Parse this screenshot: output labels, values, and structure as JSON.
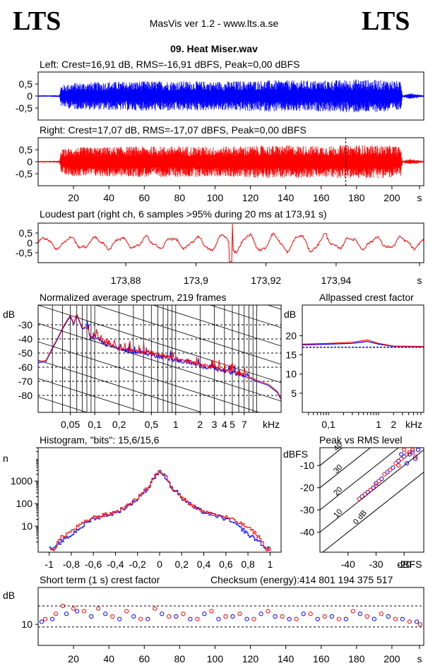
{
  "header": {
    "logo_left": "LTS",
    "logo_right": "LTS",
    "app_title": "MasVis ver 1.2 - www.lts.a.se",
    "file_title": "09. Heat Miser.wav"
  },
  "colors": {
    "left": "#0000ff",
    "right": "#ff0000",
    "axis": "#000000"
  },
  "chart_data": [
    {
      "id": "left_waveform",
      "type": "area",
      "title": "Left: Crest=16,91 dB, RMS=-16,91 dBFS, Peak=0,00 dBFS",
      "series": [
        {
          "name": "Left",
          "color": "#0000ff"
        }
      ],
      "yticks": [
        "0,5",
        "0",
        "-0,5"
      ],
      "ylim": [
        -1,
        1
      ],
      "xlim": [
        0,
        218
      ],
      "envelope": [
        [
          0,
          0.03
        ],
        [
          12,
          0.04
        ],
        [
          13,
          0.45
        ],
        [
          20,
          0.55
        ],
        [
          40,
          0.6
        ],
        [
          60,
          0.62
        ],
        [
          80,
          0.63
        ],
        [
          100,
          0.6
        ],
        [
          120,
          0.64
        ],
        [
          140,
          0.66
        ],
        [
          160,
          0.64
        ],
        [
          180,
          0.7
        ],
        [
          200,
          0.66
        ],
        [
          205,
          0.6
        ],
        [
          206,
          0.04
        ],
        [
          210,
          0.12
        ],
        [
          214,
          0.08
        ],
        [
          218,
          0.03
        ]
      ]
    },
    {
      "id": "right_waveform",
      "type": "area",
      "title": "Right: Crest=17,07 dB, RMS=-17,07 dBFS, Peak=0,00 dBFS",
      "series": [
        {
          "name": "Right",
          "color": "#ff0000"
        }
      ],
      "yticks": [
        "0,5",
        "0",
        "-0,5"
      ],
      "ylim": [
        -1,
        1
      ],
      "xlim": [
        0,
        218
      ],
      "xticks": [
        "20",
        "40",
        "60",
        "80",
        "100",
        "120",
        "140",
        "160",
        "180",
        "200",
        "s"
      ],
      "marker_x": 173.91,
      "envelope": [
        [
          0,
          0.03
        ],
        [
          12,
          0.04
        ],
        [
          13,
          0.5
        ],
        [
          20,
          0.6
        ],
        [
          40,
          0.62
        ],
        [
          60,
          0.64
        ],
        [
          80,
          0.65
        ],
        [
          100,
          0.62
        ],
        [
          120,
          0.66
        ],
        [
          140,
          0.68
        ],
        [
          160,
          0.66
        ],
        [
          180,
          0.7
        ],
        [
          200,
          0.68
        ],
        [
          205,
          0.62
        ],
        [
          206,
          0.04
        ],
        [
          210,
          0.12
        ],
        [
          214,
          0.08
        ],
        [
          218,
          0.03
        ]
      ]
    },
    {
      "id": "loudest_part",
      "type": "line",
      "title": "Loudest part (right ch, 6 samples >95% during 20 ms at 173,91 s)",
      "series": [
        {
          "name": "Right",
          "color": "#ff0000"
        }
      ],
      "yticks": [
        "0,5",
        "0",
        "-0,5"
      ],
      "ylim": [
        -1,
        1
      ],
      "xlim": [
        173.855,
        173.965
      ],
      "xticks": [
        "173,88",
        "173,9",
        "173,92",
        "173,94",
        "s"
      ],
      "xtick_values": [
        173.88,
        173.9,
        173.92,
        173.94
      ]
    },
    {
      "id": "avg_spectrum",
      "type": "line",
      "title": "Normalized average spectrum, 219 frames",
      "ylabel": "dB",
      "yticks": [
        "-30",
        "-40",
        "-50",
        "-60",
        "-70",
        "-80"
      ],
      "ylim": [
        -92,
        -16
      ],
      "xlabel": "kHz",
      "xticks": [
        "0,05",
        "0,1",
        "0,2",
        "0,5",
        "1",
        "2",
        "3",
        "4",
        "5",
        "7"
      ],
      "xscale": "log",
      "xlim": [
        0.02,
        20
      ],
      "series": [
        {
          "name": "Left",
          "color": "#0000ff"
        },
        {
          "name": "Right",
          "color": "#ff0000"
        }
      ],
      "points": [
        [
          0.02,
          -57
        ],
        [
          0.025,
          -56
        ],
        [
          0.03,
          -47
        ],
        [
          0.035,
          -40
        ],
        [
          0.04,
          -33
        ],
        [
          0.045,
          -28
        ],
        [
          0.05,
          -24
        ],
        [
          0.055,
          -30
        ],
        [
          0.06,
          -23
        ],
        [
          0.07,
          -33
        ],
        [
          0.08,
          -32
        ],
        [
          0.09,
          -40
        ],
        [
          0.1,
          -38
        ],
        [
          0.12,
          -41
        ],
        [
          0.14,
          -44
        ],
        [
          0.17,
          -45
        ],
        [
          0.2,
          -47
        ],
        [
          0.25,
          -48
        ],
        [
          0.3,
          -49
        ],
        [
          0.4,
          -50
        ],
        [
          0.5,
          -51
        ],
        [
          0.7,
          -53
        ],
        [
          1,
          -55
        ],
        [
          1.5,
          -57
        ],
        [
          2,
          -59
        ],
        [
          3,
          -61
        ],
        [
          4,
          -63
        ],
        [
          5,
          -64
        ],
        [
          7,
          -66
        ],
        [
          10,
          -70
        ],
        [
          14,
          -73
        ],
        [
          18,
          -78
        ],
        [
          20,
          -83
        ]
      ]
    },
    {
      "id": "allpassed_crest",
      "type": "line",
      "title": "Allpassed crest factor",
      "ylabel": "dB",
      "yticks": [
        "20",
        "15",
        "10",
        "5"
      ],
      "ylim": [
        0,
        28
      ],
      "xlabel": "kHz",
      "xticks": [
        "0,1",
        "1",
        "2"
      ],
      "xscale": "log",
      "xlim": [
        0.03,
        8
      ],
      "reference_db": 17.0,
      "series": [
        {
          "name": "Left",
          "color": "#0000ff",
          "points": [
            [
              0.03,
              17.6
            ],
            [
              0.1,
              17.8
            ],
            [
              0.3,
              18.0
            ],
            [
              0.6,
              18.5
            ],
            [
              1,
              17.8
            ],
            [
              2,
              17.2
            ],
            [
              8,
              17.1
            ]
          ]
        },
        {
          "name": "Right",
          "color": "#ff0000",
          "points": [
            [
              0.03,
              17.8
            ],
            [
              0.1,
              18.0
            ],
            [
              0.3,
              18.3
            ],
            [
              0.6,
              18.9
            ],
            [
              1,
              18.0
            ],
            [
              2,
              17.3
            ],
            [
              8,
              17.2
            ]
          ]
        }
      ]
    },
    {
      "id": "histogram",
      "type": "line",
      "title": "Histogram, \"bits\": 15,6/15,6",
      "ylabel": "n",
      "yticks": [
        "1000",
        "100",
        "10"
      ],
      "yscale": "log",
      "ylim": [
        0.7,
        30000
      ],
      "xticks": [
        "-1",
        "-0,8",
        "-0,6",
        "-0,4",
        "-0,2",
        "0",
        "0,2",
        "0,4",
        "0,6",
        "0,8",
        "1"
      ],
      "xlim": [
        -1.1,
        1.1
      ],
      "series": [
        {
          "name": "Left",
          "color": "#0000ff",
          "points": [
            [
              -1,
              1
            ],
            [
              -0.95,
              1
            ],
            [
              -0.9,
              2
            ],
            [
              -0.8,
              4
            ],
            [
              -0.7,
              10
            ],
            [
              -0.6,
              22
            ],
            [
              -0.5,
              30
            ],
            [
              -0.4,
              40
            ],
            [
              -0.3,
              70
            ],
            [
              -0.2,
              160
            ],
            [
              -0.1,
              500
            ],
            [
              0,
              2500
            ],
            [
              0.1,
              500
            ],
            [
              0.2,
              160
            ],
            [
              0.3,
              70
            ],
            [
              0.4,
              40
            ],
            [
              0.5,
              30
            ],
            [
              0.6,
              20
            ],
            [
              0.7,
              10
            ],
            [
              0.8,
              4
            ],
            [
              0.9,
              2
            ],
            [
              0.95,
              1
            ],
            [
              1,
              1
            ]
          ]
        },
        {
          "name": "Right",
          "color": "#ff0000",
          "points": [
            [
              -1,
              1
            ],
            [
              -0.95,
              1
            ],
            [
              -0.9,
              3
            ],
            [
              -0.8,
              6
            ],
            [
              -0.7,
              13
            ],
            [
              -0.6,
              25
            ],
            [
              -0.5,
              32
            ],
            [
              -0.4,
              42
            ],
            [
              -0.3,
              75
            ],
            [
              -0.2,
              170
            ],
            [
              -0.1,
              550
            ],
            [
              0,
              2700
            ],
            [
              0.1,
              550
            ],
            [
              0.2,
              170
            ],
            [
              0.3,
              75
            ],
            [
              0.4,
              42
            ],
            [
              0.5,
              32
            ],
            [
              0.6,
              25
            ],
            [
              0.7,
              15
            ],
            [
              0.8,
              8
            ],
            [
              0.9,
              3
            ],
            [
              0.95,
              1
            ],
            [
              1,
              1
            ]
          ]
        }
      ]
    },
    {
      "id": "peak_vs_rms",
      "type": "scatter",
      "title": "Peak vs RMS level",
      "ylabel": "dBFS",
      "xlabel": "dBFS",
      "yticks": [
        "-10",
        "-20",
        "-30",
        "-40"
      ],
      "xticks": [
        "-40",
        "-30",
        "-20"
      ],
      "xlim": [
        -50,
        -13
      ],
      "ylim": [
        -49,
        -2
      ],
      "crest_lines": [
        "0 dB",
        "10",
        "20",
        "30",
        "40"
      ],
      "series": [
        {
          "name": "Left",
          "color": "#0000ff",
          "points": [
            [
              -35,
              -24
            ],
            [
              -33,
              -22
            ],
            [
              -31,
              -20
            ],
            [
              -30,
              -18
            ],
            [
              -28,
              -16
            ],
            [
              -26,
              -13
            ],
            [
              -24,
              -11
            ],
            [
              -22,
              -8
            ],
            [
              -20,
              -6
            ],
            [
              -18,
              -5
            ],
            [
              -17,
              -4
            ],
            [
              -16,
              -7
            ],
            [
              -19,
              -9
            ],
            [
              -21,
              -5
            ],
            [
              -15,
              -3
            ]
          ]
        },
        {
          "name": "Right",
          "color": "#ff0000",
          "points": [
            [
              -36,
              -25
            ],
            [
              -34,
              -23
            ],
            [
              -32,
              -21
            ],
            [
              -30,
              -19
            ],
            [
              -29,
              -17
            ],
            [
              -27,
              -14
            ],
            [
              -25,
              -12
            ],
            [
              -23,
              -9
            ],
            [
              -21,
              -7
            ],
            [
              -19,
              -5
            ],
            [
              -18,
              -4
            ],
            [
              -17,
              -3
            ],
            [
              -16,
              -6
            ],
            [
              -20,
              -3
            ],
            [
              -22,
              -10
            ]
          ]
        }
      ]
    },
    {
      "id": "short_term_crest",
      "type": "scatter",
      "title": "Short term (1 s) crest factor",
      "ylabel": "dB",
      "yticks": [
        "10"
      ],
      "ylim": [
        2,
        24
      ],
      "xlim": [
        0,
        218
      ],
      "xticks": [
        "20",
        "40",
        "60",
        "80",
        "100",
        "120",
        "140",
        "160",
        "180",
        "200",
        "s"
      ],
      "reference_lines_db": [
        17,
        9
      ],
      "series": [
        {
          "name": "Left",
          "color": "#0000ff",
          "points": [
            [
              2,
              11
            ],
            [
              8,
              12
            ],
            [
              16,
              14
            ],
            [
              22,
              15
            ],
            [
              30,
              13
            ],
            [
              38,
              14
            ],
            [
              46,
              12
            ],
            [
              54,
              13
            ],
            [
              62,
              12
            ],
            [
              70,
              14
            ],
            [
              78,
              13
            ],
            [
              86,
              12
            ],
            [
              94,
              14
            ],
            [
              102,
              12
            ],
            [
              110,
              13
            ],
            [
              118,
              12
            ],
            [
              126,
              14
            ],
            [
              134,
              13
            ],
            [
              142,
              12
            ],
            [
              150,
              14
            ],
            [
              158,
              12
            ],
            [
              166,
              13
            ],
            [
              174,
              12
            ],
            [
              182,
              14
            ],
            [
              190,
              12
            ],
            [
              198,
              13
            ],
            [
              206,
              12
            ],
            [
              214,
              11
            ]
          ]
        },
        {
          "name": "Right",
          "color": "#ff0000",
          "points": [
            [
              4,
              12
            ],
            [
              10,
              14
            ],
            [
              14,
              17
            ],
            [
              20,
              16
            ],
            [
              26,
              15
            ],
            [
              34,
              16
            ],
            [
              42,
              13
            ],
            [
              50,
              15
            ],
            [
              58,
              12
            ],
            [
              66,
              16
            ],
            [
              74,
              13
            ],
            [
              82,
              14
            ],
            [
              90,
              12
            ],
            [
              98,
              15
            ],
            [
              106,
              13
            ],
            [
              114,
              14
            ],
            [
              122,
              12
            ],
            [
              130,
              15
            ],
            [
              138,
              13
            ],
            [
              146,
              12
            ],
            [
              154,
              14
            ],
            [
              162,
              13
            ],
            [
              170,
              12
            ],
            [
              178,
              15
            ],
            [
              186,
              13
            ],
            [
              194,
              14
            ],
            [
              202,
              12
            ],
            [
              210,
              11
            ],
            [
              216,
              10
            ]
          ]
        }
      ]
    }
  ],
  "checksum": {
    "label": "Checksum (energy):",
    "value": "414 801 194 375 517"
  }
}
